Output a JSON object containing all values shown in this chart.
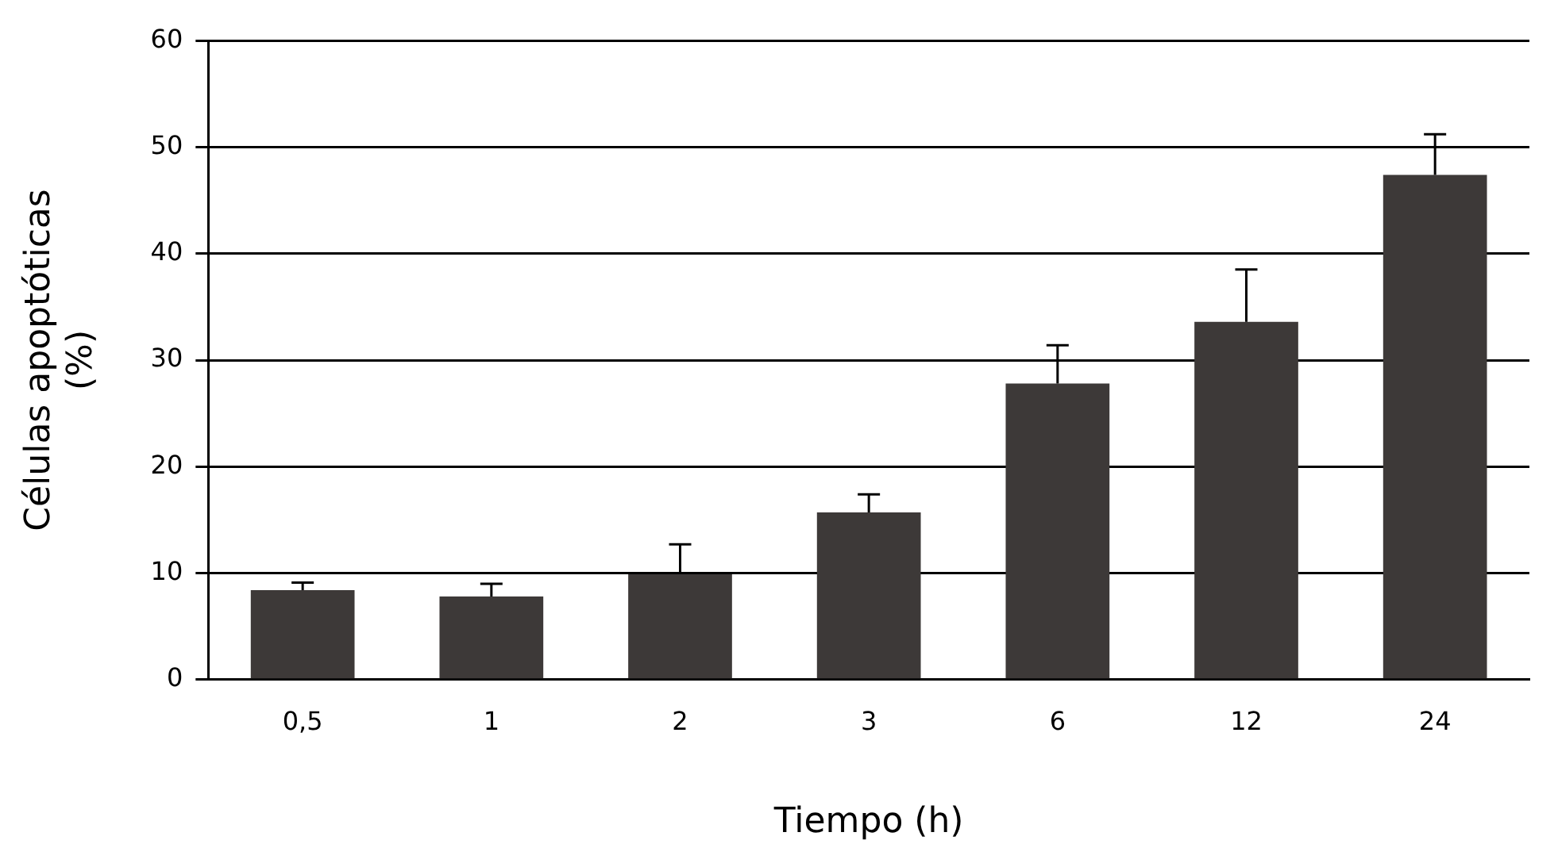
{
  "chart_data": {
    "type": "bar",
    "xlabel": "Tiempo (h)",
    "ylabel": "Células apoptóticas\n(%)",
    "categories": [
      "0,5",
      "1",
      "2",
      "3",
      "6",
      "12",
      "24"
    ],
    "series": [
      {
        "color": "#3d3938",
        "values": [
          8.4,
          7.8,
          9.9,
          15.7,
          27.8,
          33.6,
          47.4
        ],
        "errors": [
          [
            8.4,
            9.1
          ],
          [
            7.8,
            9.0
          ],
          [
            9.9,
            12.7
          ],
          [
            15.7,
            17.4
          ],
          [
            27.8,
            31.4
          ],
          [
            33.6,
            38.5
          ],
          [
            47.4,
            51.2
          ]
        ]
      }
    ],
    "ylim": [
      0,
      60
    ],
    "yticks": [
      0,
      10,
      20,
      30,
      40,
      50,
      60
    ],
    "grid": "y",
    "legend": false
  }
}
